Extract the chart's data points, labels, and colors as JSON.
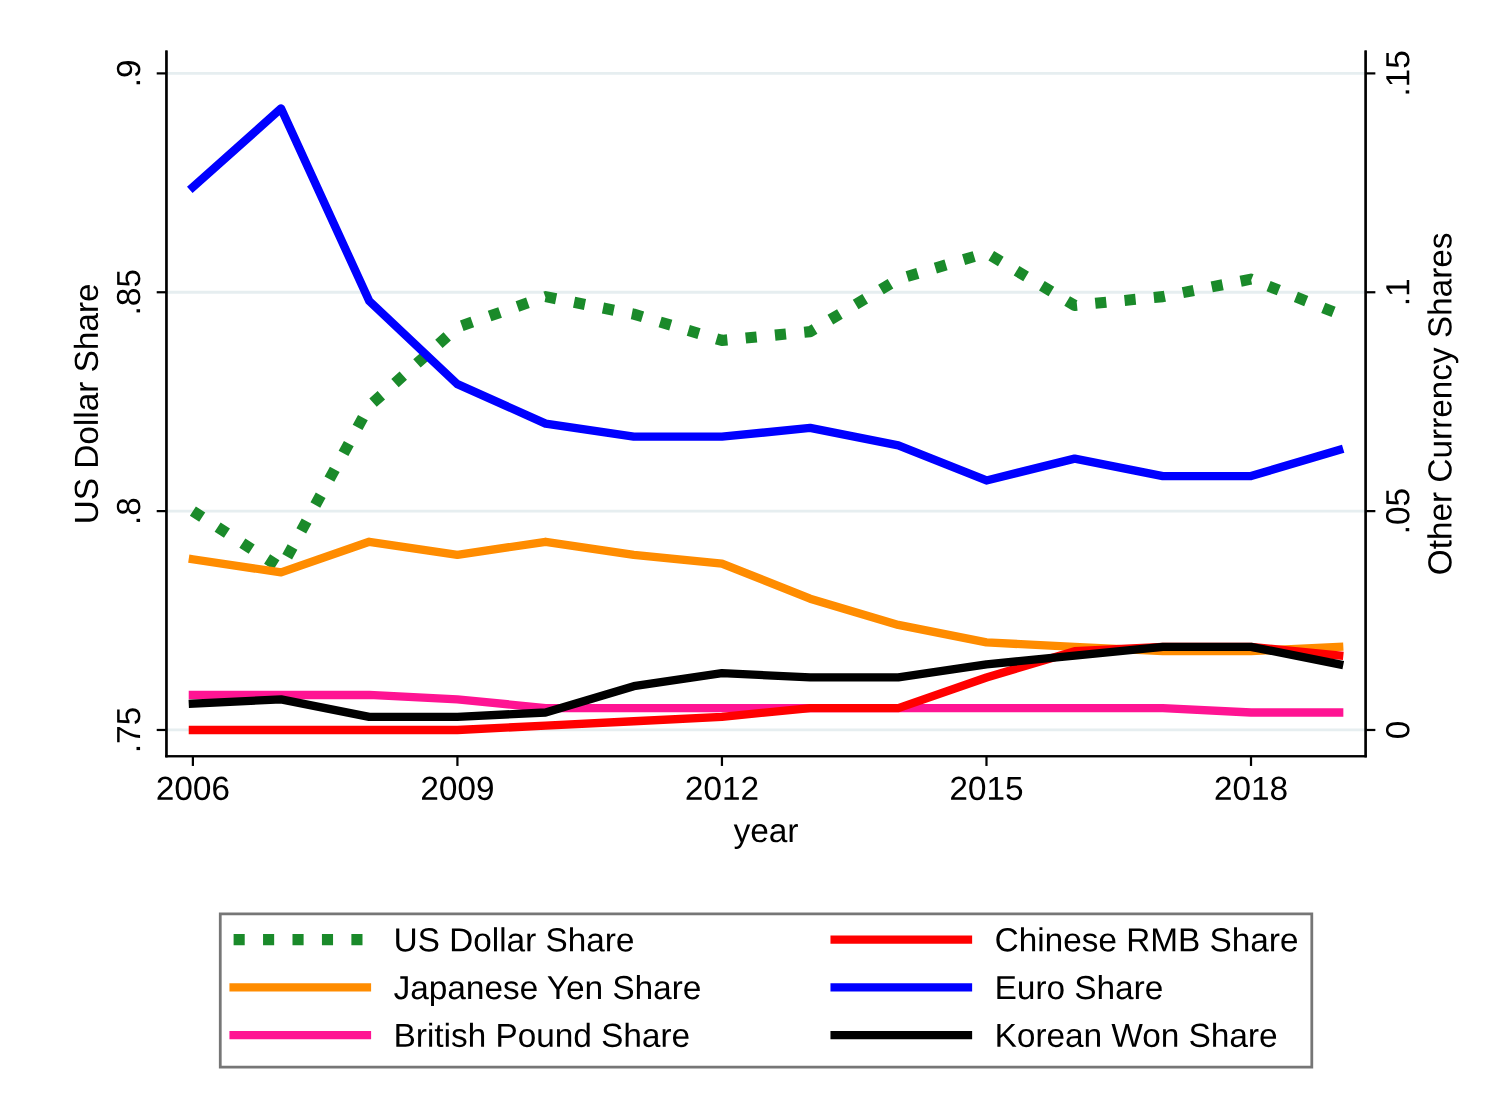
{
  "chart_data": {
    "type": "line",
    "xlabel": "year",
    "ylabel": "US Dollar Share",
    "y2label": "Other Currency Shares",
    "x": [
      2006,
      2007,
      2008,
      2009,
      2010,
      2011,
      2012,
      2013,
      2014,
      2015,
      2016,
      2017,
      2018,
      2019
    ],
    "xlim": [
      2005.7,
      2019.3
    ],
    "xticks": [
      2006,
      2009,
      2012,
      2015,
      2018
    ],
    "ylim": [
      0.744,
      0.905
    ],
    "yticks": [
      {
        "value": 0.75,
        "label": ".75"
      },
      {
        "value": 0.8,
        "label": ".8"
      },
      {
        "value": 0.85,
        "label": ".85"
      },
      {
        "value": 0.9,
        "label": ".9"
      }
    ],
    "y2lim": [
      -0.006,
      0.155
    ],
    "y2ticks": [
      0,
      {
        "value": 0.05,
        "label": ".05"
      },
      {
        "value": 0.1,
        "label": ".1"
      },
      {
        "value": 0.15,
        "label": ".15"
      }
    ],
    "grid": "y",
    "legend": "bottom",
    "series": [
      {
        "name": "US Dollar Share",
        "color": "#1a8a2a",
        "line_style": "dotted",
        "values": [
          0.8,
          0.787,
          0.824,
          0.842,
          0.849,
          0.845,
          0.839,
          0.841,
          0.853,
          0.859,
          0.847,
          0.849,
          0.853,
          0.845
        ]
      },
      {
        "name": "Japanese Yen Share",
        "color": "#ff8c00",
        "axis": "y2",
        "values": [
          0.039,
          0.036,
          0.043,
          0.04,
          0.043,
          0.04,
          0.038,
          0.03,
          0.024,
          0.02,
          0.019,
          0.018,
          0.018,
          0.019
        ]
      },
      {
        "name": "British Pound Share",
        "color": "#ff1493",
        "axis": "y2",
        "values": [
          0.008,
          0.008,
          0.008,
          0.007,
          0.005,
          0.005,
          0.005,
          0.005,
          0.005,
          0.005,
          0.005,
          0.005,
          0.004,
          0.004
        ]
      },
      {
        "name": "Chinese RMB Share",
        "color": "#ff0000",
        "axis": "y2",
        "values": [
          0.0,
          0.0,
          0.0,
          0.0,
          0.001,
          0.002,
          0.003,
          0.005,
          0.005,
          0.012,
          0.018,
          0.019,
          0.019,
          0.017
        ]
      },
      {
        "name": "Euro Share",
        "color": "#0000ff",
        "axis": "y2",
        "values": [
          0.124,
          0.142,
          0.098,
          0.079,
          0.07,
          0.067,
          0.067,
          0.069,
          0.065,
          0.057,
          0.062,
          0.058,
          0.058,
          0.064
        ]
      },
      {
        "name": "Korean Won Share",
        "color": "#000000",
        "axis": "y2",
        "values": [
          0.006,
          0.007,
          0.003,
          0.003,
          0.004,
          0.01,
          0.013,
          0.012,
          0.012,
          0.015,
          0.017,
          0.019,
          0.019,
          0.015
        ]
      }
    ]
  }
}
